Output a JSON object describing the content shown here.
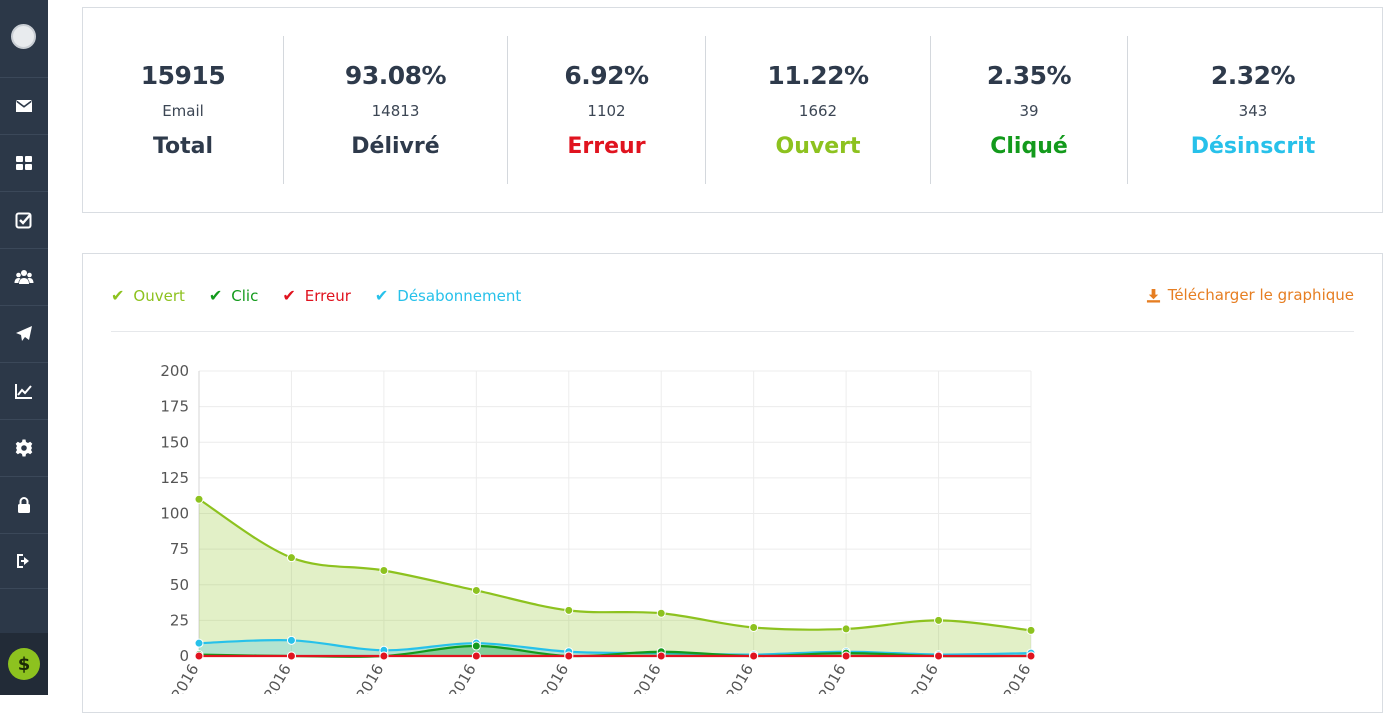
{
  "stats": [
    {
      "value": "15915",
      "sub": "Email",
      "label": "Total",
      "color": "#2e3a4b"
    },
    {
      "value": "93.08%",
      "sub": "14813",
      "label": "Délivré",
      "color": "#2e3a4b"
    },
    {
      "value": "6.92%",
      "sub": "1102",
      "label": "Erreur",
      "color": "#e0131f"
    },
    {
      "value": "11.22%",
      "sub": "1662",
      "label": "Ouvert",
      "color": "#8dc21f"
    },
    {
      "value": "2.35%",
      "sub": "39",
      "label": "Cliqué",
      "color": "#139a1c"
    },
    {
      "value": "2.32%",
      "sub": "343",
      "label": "Désinscrit",
      "color": "#27c1ea"
    }
  ],
  "legend": [
    {
      "label": "Ouvert",
      "color": "#8dc21f"
    },
    {
      "label": "Clic",
      "color": "#139a1c"
    },
    {
      "label": "Erreur",
      "color": "#e0131f"
    },
    {
      "label": "Désabonnement",
      "color": "#27c1ea"
    }
  ],
  "download_label": "Télécharger le graphique",
  "sidebar": {
    "icons": [
      "envelope-icon",
      "dashboard-icon",
      "checkbox-icon",
      "users-icon",
      "paper-plane-icon",
      "line-chart-icon",
      "gear-icon",
      "lock-icon",
      "logout-icon"
    ],
    "bottom_symbol": "$"
  },
  "chart_data": {
    "type": "area",
    "x": [
      "2016",
      "2016",
      "2016",
      "2016",
      "2016",
      "2016",
      "2016",
      "2016",
      "2016",
      "2016"
    ],
    "ylim": [
      0,
      200
    ],
    "yticks": [
      0,
      25,
      50,
      75,
      100,
      125,
      150,
      175,
      200
    ],
    "grid": true,
    "series": [
      {
        "name": "Ouvert",
        "color": "#8dc21f",
        "values": [
          110,
          69,
          60,
          46,
          32,
          30,
          20,
          19,
          25,
          18
        ]
      },
      {
        "name": "Désabonnement",
        "color": "#27c1ea",
        "values": [
          9,
          11,
          4,
          9,
          3,
          2,
          1,
          3,
          1,
          2
        ]
      },
      {
        "name": "Clic",
        "color": "#139a1c",
        "values": [
          1,
          0,
          0,
          7,
          0,
          3,
          0,
          2,
          0,
          0
        ]
      },
      {
        "name": "Erreur",
        "color": "#e0131f",
        "values": [
          0,
          0,
          0,
          0,
          0,
          0,
          0,
          0,
          0,
          0
        ]
      }
    ]
  }
}
